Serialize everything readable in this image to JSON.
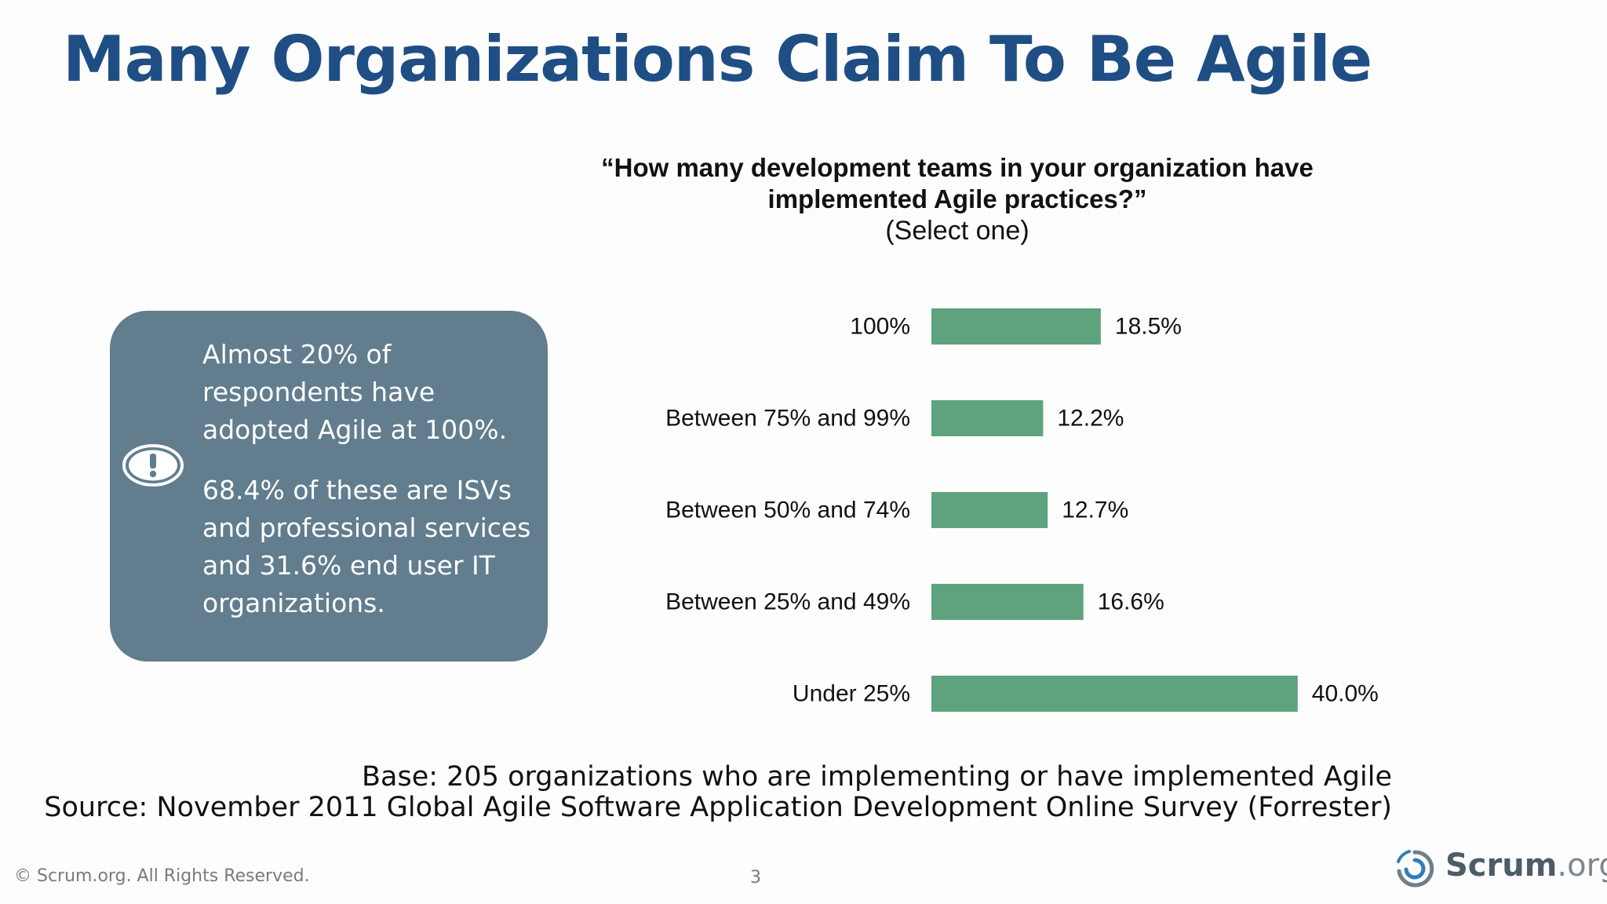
{
  "slide": {
    "title": "Many Organizations Claim To Be Agile"
  },
  "question": {
    "line1": "“How many development teams in your organization have",
    "line2": "implemented Agile practices?”",
    "sub": "(Select one)"
  },
  "callout": {
    "icon": "exclamation-circle-icon",
    "paragraph1": "Almost 20% of respondents have adopted Agile at 100%.",
    "paragraph2": "68.4% of these are ISVs and professional services and 31.6% end user IT organizations.",
    "background_color": "#617d8e"
  },
  "chart_data": {
    "type": "bar",
    "orientation": "horizontal",
    "title": "“How many development teams in your organization have implemented Agile practices?” (Select one)",
    "categories": [
      "100%",
      "Between 75% and 99%",
      "Between 50% and 74%",
      "Between 25% and 49%",
      "Under 25%"
    ],
    "values": [
      18.5,
      12.2,
      12.7,
      16.6,
      40.0
    ],
    "value_labels": [
      "18.5%",
      "12.2%",
      "12.7%",
      "16.6%",
      "40.0%"
    ],
    "bar_color": "#5fa27e",
    "grid": false,
    "legend": "none"
  },
  "footnotes": {
    "base": "Base: 205 organizations who are implementing or have implemented Agile",
    "source": "Source: November 2011 Global Agile Software Application Development Online Survey (Forrester)"
  },
  "footer": {
    "copyright": "© Scrum.org. All Rights Reserved.",
    "page_number": "3",
    "logo_name": "Scrum",
    "logo_tld": ".org"
  }
}
